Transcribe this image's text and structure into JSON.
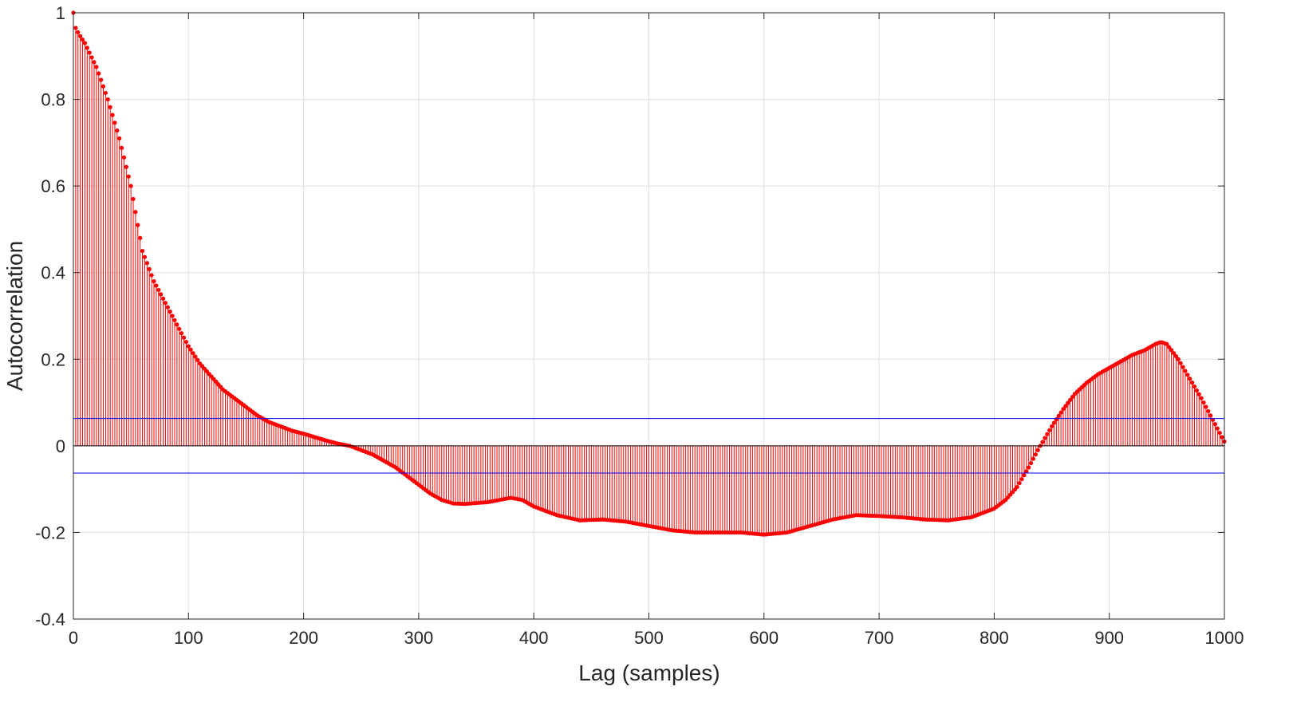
{
  "chart_data": {
    "type": "stem",
    "xlabel": "Lag (samples)",
    "ylabel": "Autocorrelation",
    "xlim": [
      0,
      1000
    ],
    "ylim": [
      -0.4,
      1
    ],
    "x_ticks": [
      0,
      100,
      200,
      300,
      400,
      500,
      600,
      700,
      800,
      900,
      1000
    ],
    "x_tick_labels": [
      "0",
      "100",
      "200",
      "300",
      "400",
      "500",
      "600",
      "700",
      "800",
      "900",
      "1000"
    ],
    "y_ticks": [
      -0.4,
      -0.2,
      0,
      0.2,
      0.4,
      0.6,
      0.8,
      1
    ],
    "y_tick_labels": [
      "-0.4",
      "-0.2",
      "0",
      "0.2",
      "0.4",
      "0.6",
      "0.8",
      "1"
    ],
    "grid": true,
    "series": [
      {
        "name": "",
        "color": "#ff0000",
        "lag_step": 2,
        "profile_x": [
          0,
          1,
          2,
          5,
          10,
          20,
          30,
          40,
          50,
          60,
          70,
          80,
          90,
          100,
          110,
          120,
          130,
          140,
          150,
          160,
          170,
          180,
          190,
          200,
          210,
          220,
          230,
          240,
          250,
          260,
          270,
          280,
          290,
          300,
          310,
          320,
          330,
          340,
          350,
          360,
          370,
          380,
          390,
          400,
          420,
          440,
          460,
          480,
          500,
          520,
          540,
          560,
          580,
          600,
          620,
          640,
          660,
          680,
          700,
          720,
          740,
          760,
          780,
          800,
          810,
          820,
          830,
          840,
          850,
          860,
          870,
          880,
          890,
          900,
          910,
          920,
          930,
          940,
          945,
          950,
          960,
          970,
          980,
          990,
          1000
        ],
        "profile_y": [
          1.0,
          0.97,
          0.965,
          0.95,
          0.93,
          0.875,
          0.8,
          0.71,
          0.6,
          0.45,
          0.38,
          0.33,
          0.28,
          0.23,
          0.19,
          0.16,
          0.13,
          0.11,
          0.09,
          0.07,
          0.055,
          0.045,
          0.035,
          0.028,
          0.02,
          0.012,
          0.005,
          0.0,
          -0.01,
          -0.02,
          -0.035,
          -0.05,
          -0.07,
          -0.09,
          -0.11,
          -0.125,
          -0.133,
          -0.134,
          -0.132,
          -0.13,
          -0.125,
          -0.12,
          -0.125,
          -0.14,
          -0.16,
          -0.172,
          -0.17,
          -0.175,
          -0.185,
          -0.195,
          -0.2,
          -0.2,
          -0.2,
          -0.205,
          -0.2,
          -0.185,
          -0.17,
          -0.16,
          -0.162,
          -0.165,
          -0.17,
          -0.172,
          -0.165,
          -0.145,
          -0.125,
          -0.095,
          -0.05,
          0.0,
          0.045,
          0.085,
          0.12,
          0.145,
          0.165,
          0.18,
          0.195,
          0.21,
          0.22,
          0.235,
          0.24,
          0.235,
          0.2,
          0.155,
          0.11,
          0.06,
          0.01
        ]
      }
    ],
    "confidence_bounds": {
      "upper": 0.063,
      "lower": -0.063,
      "color": "#0000ff"
    }
  }
}
